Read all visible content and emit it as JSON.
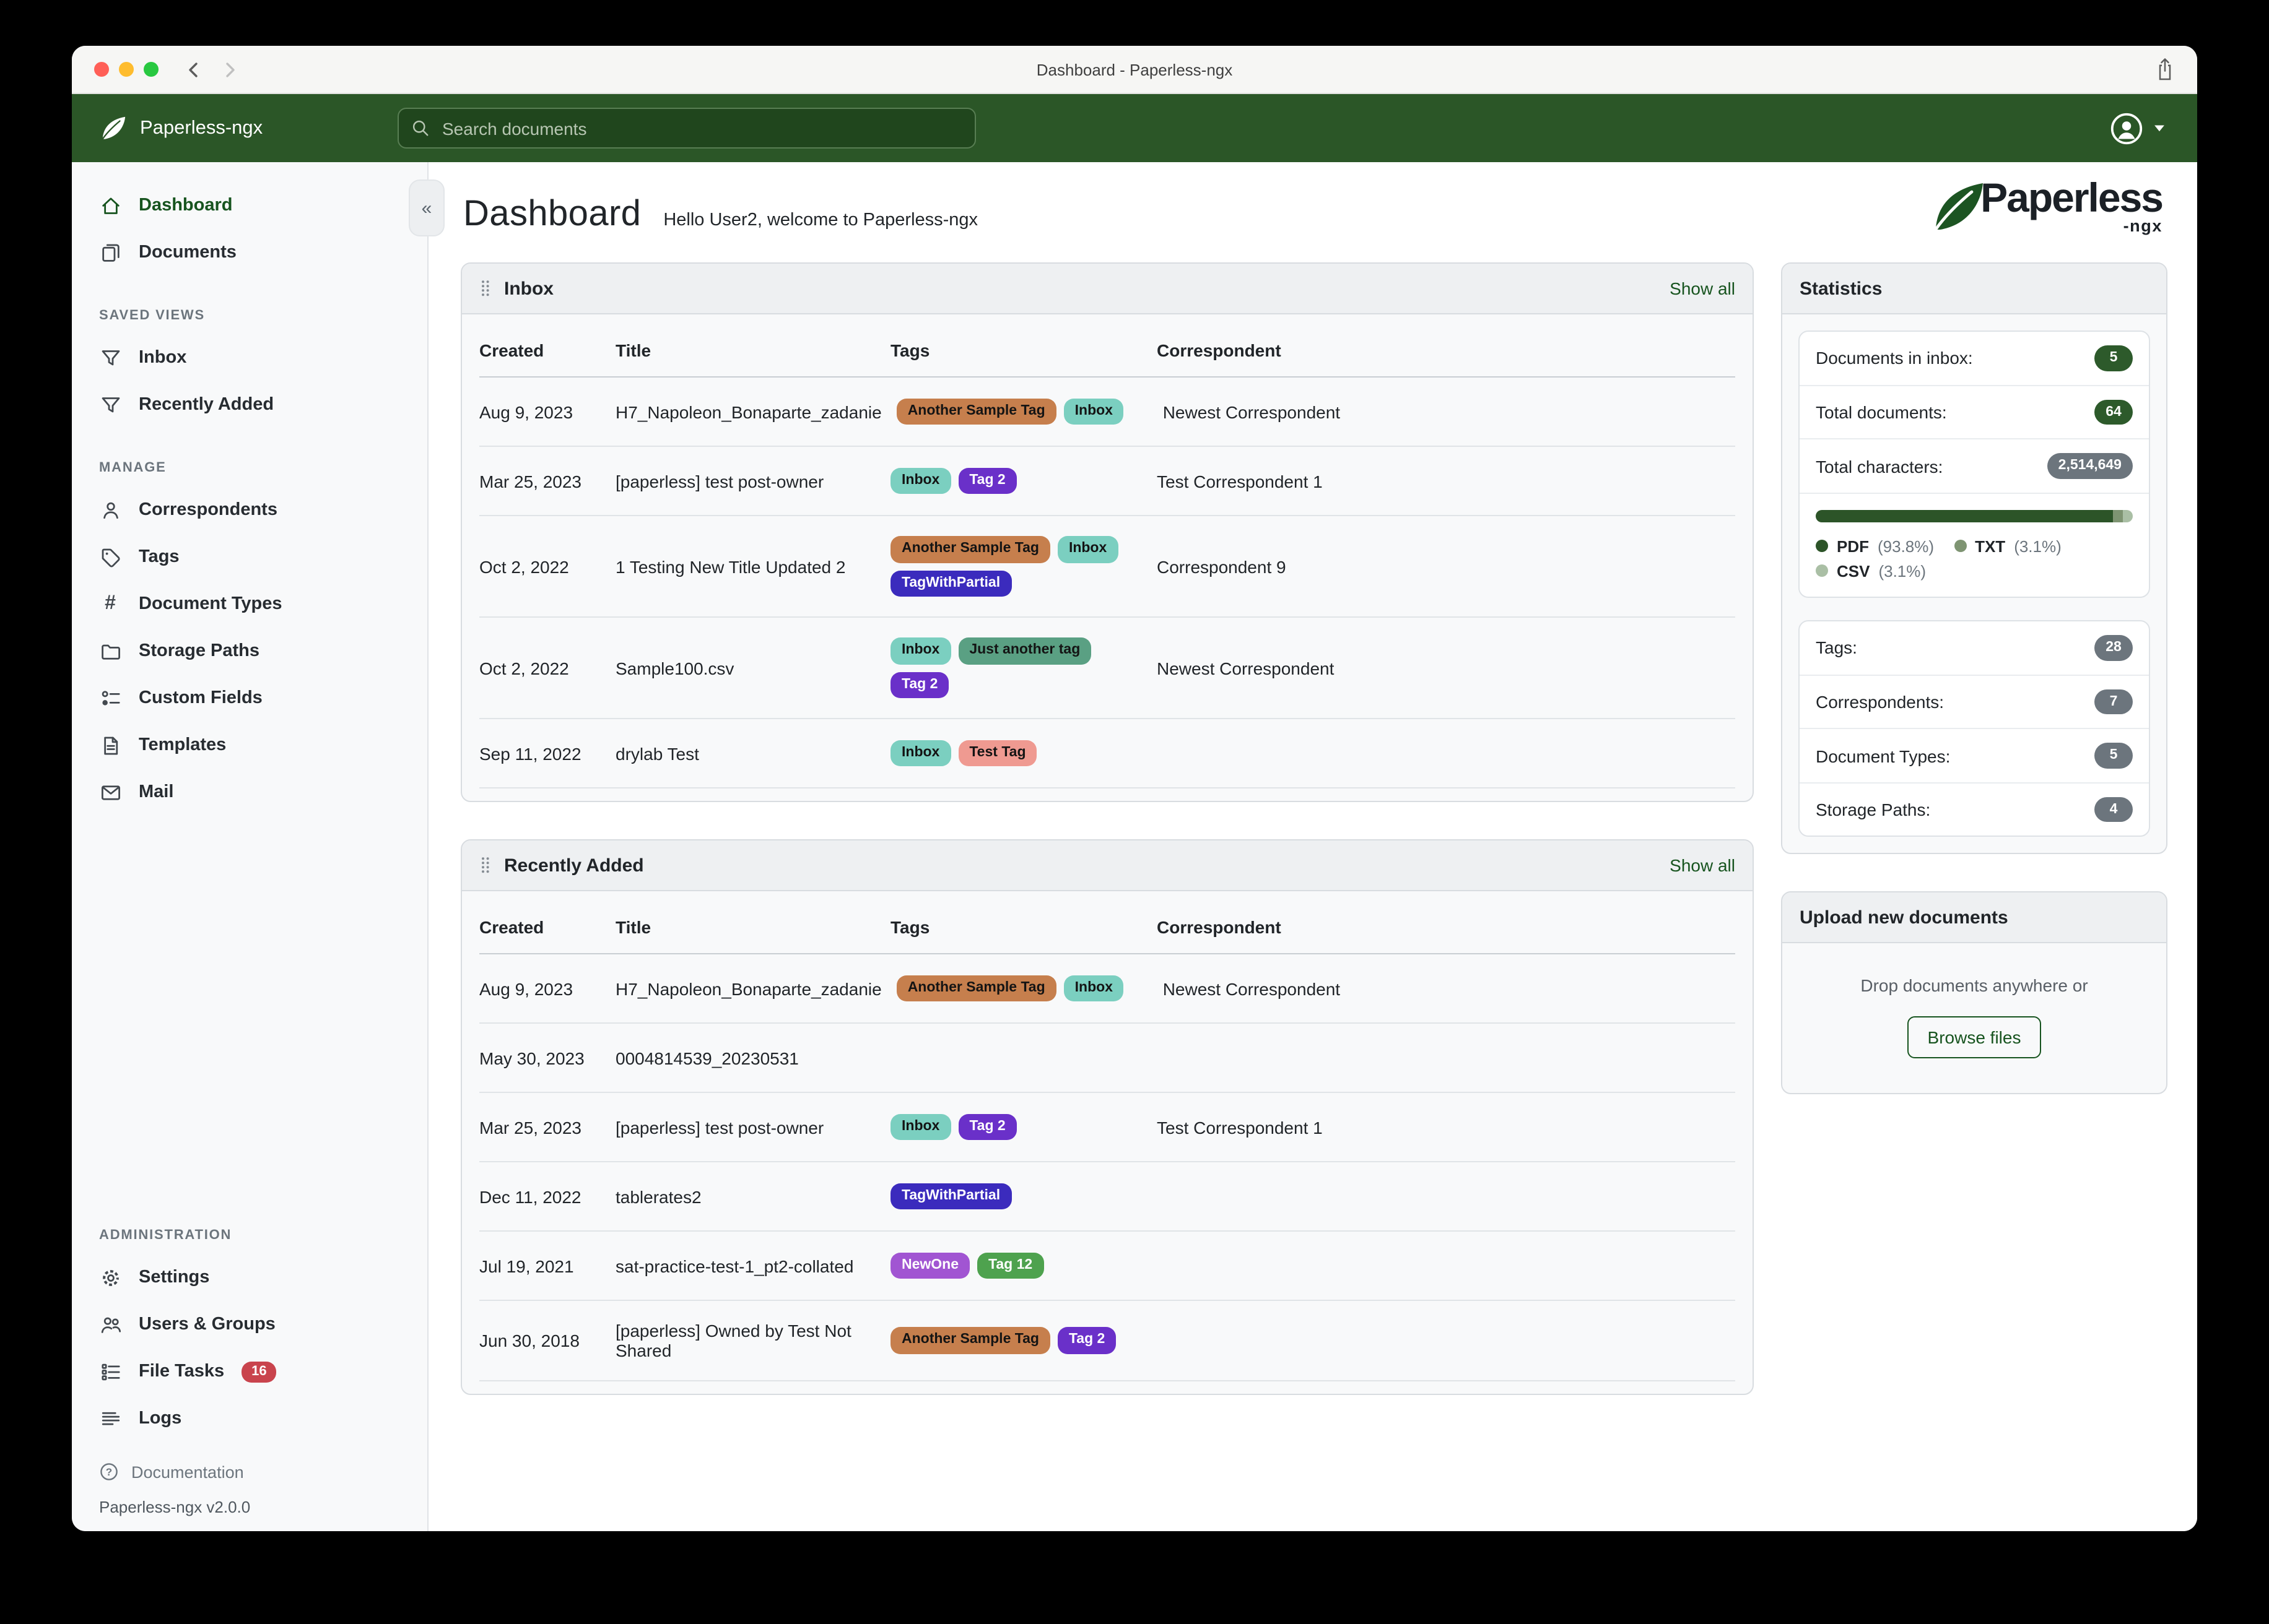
{
  "titlebar": {
    "title": "Dashboard - Paperless-ngx"
  },
  "navbar": {
    "brand": "Paperless-ngx",
    "search_placeholder": "Search documents"
  },
  "sidebar": {
    "sections": [
      {
        "heading": null,
        "items": [
          {
            "label": "Dashboard",
            "icon": "home",
            "active": true
          },
          {
            "label": "Documents",
            "icon": "documents",
            "active": false
          }
        ]
      },
      {
        "heading": "SAVED VIEWS",
        "items": [
          {
            "label": "Inbox",
            "icon": "funnel",
            "active": false
          },
          {
            "label": "Recently Added",
            "icon": "funnel",
            "active": false
          }
        ]
      },
      {
        "heading": "MANAGE",
        "items": [
          {
            "label": "Correspondents",
            "icon": "person",
            "active": false
          },
          {
            "label": "Tags",
            "icon": "tag",
            "active": false
          },
          {
            "label": "Document Types",
            "icon": "hash",
            "active": false
          },
          {
            "label": "Storage Paths",
            "icon": "folder",
            "active": false
          },
          {
            "label": "Custom Fields",
            "icon": "radios",
            "active": false
          },
          {
            "label": "Templates",
            "icon": "file",
            "active": false
          },
          {
            "label": "Mail",
            "icon": "envelope",
            "active": false
          }
        ]
      },
      {
        "heading": "ADMINISTRATION",
        "push_down": true,
        "items": [
          {
            "label": "Settings",
            "icon": "gear",
            "active": false
          },
          {
            "label": "Users & Groups",
            "icon": "people",
            "active": false
          },
          {
            "label": "File Tasks",
            "icon": "list-task",
            "active": false,
            "badge": "16"
          },
          {
            "label": "Logs",
            "icon": "text-left",
            "active": false
          }
        ]
      }
    ],
    "footer": {
      "documentation_label": "Documentation",
      "version": "Paperless-ngx v2.0.0"
    }
  },
  "page": {
    "title": "Dashboard",
    "greeting": "Hello User2, welcome to Paperless-ngx",
    "logo_word": "Paperless",
    "logo_suffix": "-ngx"
  },
  "tags": {
    "another_sample_tag": {
      "label": "Another Sample Tag",
      "bg": "#c67f4d",
      "fg": "#141414"
    },
    "inbox": {
      "label": "Inbox",
      "bg": "#7bcfc0",
      "fg": "#141414"
    },
    "tag2": {
      "label": "Tag 2",
      "bg": "#6a30c9",
      "fg": "#ffffff"
    },
    "tagwithpartial": {
      "label": "TagWithPartial",
      "bg": "#3b2bbd",
      "fg": "#ffffff"
    },
    "just_another_tag": {
      "label": "Just another tag",
      "bg": "#5aa083",
      "fg": "#141414"
    },
    "test_tag": {
      "label": "Test Tag",
      "bg": "#ef9a91",
      "fg": "#141414"
    },
    "newone": {
      "label": "NewOne",
      "bg": "#a155d2",
      "fg": "#ffffff"
    },
    "tag12": {
      "label": "Tag 12",
      "bg": "#4ea24e",
      "fg": "#ffffff"
    }
  },
  "inbox_card": {
    "title": "Inbox",
    "show_all": "Show all",
    "columns": [
      "Created",
      "Title",
      "Tags",
      "Correspondent"
    ],
    "rows": [
      {
        "created": "Aug 9, 2023",
        "title": "H7_Napoleon_Bonaparte_zadanie",
        "tags": [
          "another_sample_tag",
          "inbox"
        ],
        "correspondent": "Newest Correspondent"
      },
      {
        "created": "Mar 25, 2023",
        "title": "[paperless] test post-owner",
        "tags": [
          "inbox",
          "tag2"
        ],
        "correspondent": "Test Correspondent 1"
      },
      {
        "created": "Oct 2, 2022",
        "title": "1 Testing New Title Updated 2",
        "tags": [
          "another_sample_tag",
          "inbox",
          "tagwithpartial"
        ],
        "correspondent": "Correspondent 9"
      },
      {
        "created": "Oct 2, 2022",
        "title": "Sample100.csv",
        "tags": [
          "inbox",
          "just_another_tag",
          "tag2"
        ],
        "correspondent": "Newest Correspondent"
      },
      {
        "created": "Sep 11, 2022",
        "title": "drylab Test",
        "tags": [
          "inbox",
          "test_tag"
        ],
        "correspondent": ""
      }
    ]
  },
  "recent_card": {
    "title": "Recently Added",
    "show_all": "Show all",
    "columns": [
      "Created",
      "Title",
      "Tags",
      "Correspondent"
    ],
    "rows": [
      {
        "created": "Aug 9, 2023",
        "title": "H7_Napoleon_Bonaparte_zadanie",
        "tags": [
          "another_sample_tag",
          "inbox"
        ],
        "correspondent": "Newest Correspondent"
      },
      {
        "created": "May 30, 2023",
        "title": "0004814539_20230531",
        "tags": [],
        "correspondent": ""
      },
      {
        "created": "Mar 25, 2023",
        "title": "[paperless] test post-owner",
        "tags": [
          "inbox",
          "tag2"
        ],
        "correspondent": "Test Correspondent 1"
      },
      {
        "created": "Dec 11, 2022",
        "title": "tablerates2",
        "tags": [
          "tagwithpartial"
        ],
        "correspondent": ""
      },
      {
        "created": "Jul 19, 2021",
        "title": "sat-practice-test-1_pt2-collated",
        "tags": [
          "newone",
          "tag12"
        ],
        "correspondent": ""
      },
      {
        "created": "Jun 30, 2018",
        "title": "[paperless] Owned by Test Not Shared",
        "tags": [
          "another_sample_tag",
          "tag2"
        ],
        "correspondent": ""
      }
    ]
  },
  "statistics": {
    "title": "Statistics",
    "primary_rows": [
      {
        "label": "Documents in inbox:",
        "value": "5",
        "style": "green"
      },
      {
        "label": "Total documents:",
        "value": "64",
        "style": "green"
      },
      {
        "label": "Total characters:",
        "value": "2,514,649",
        "style": "gray"
      }
    ],
    "chart": {
      "type": "stacked-bar",
      "segments": [
        {
          "label": "PDF",
          "pct": 93.8,
          "pct_label": "(93.8%)",
          "color": "#2c5428"
        },
        {
          "label": "TXT",
          "pct": 3.1,
          "pct_label": "(3.1%)",
          "color": "#7e9472"
        },
        {
          "label": "CSV",
          "pct": 3.1,
          "pct_label": "(3.1%)",
          "color": "#aabfa5"
        }
      ]
    },
    "secondary_rows": [
      {
        "label": "Tags:",
        "value": "28",
        "style": "gray"
      },
      {
        "label": "Correspondents:",
        "value": "7",
        "style": "gray"
      },
      {
        "label": "Document Types:",
        "value": "5",
        "style": "gray"
      },
      {
        "label": "Storage Paths:",
        "value": "4",
        "style": "gray"
      }
    ]
  },
  "upload": {
    "title": "Upload new documents",
    "hint": "Drop documents anywhere or",
    "button": "Browse files"
  },
  "colors": {
    "navbar_green": "#2b5627",
    "accent_green": "#17541f",
    "badge_green": "#2d5a2b",
    "badge_gray": "#6c757d",
    "file_tasks_badge_red": "#c9444d"
  }
}
